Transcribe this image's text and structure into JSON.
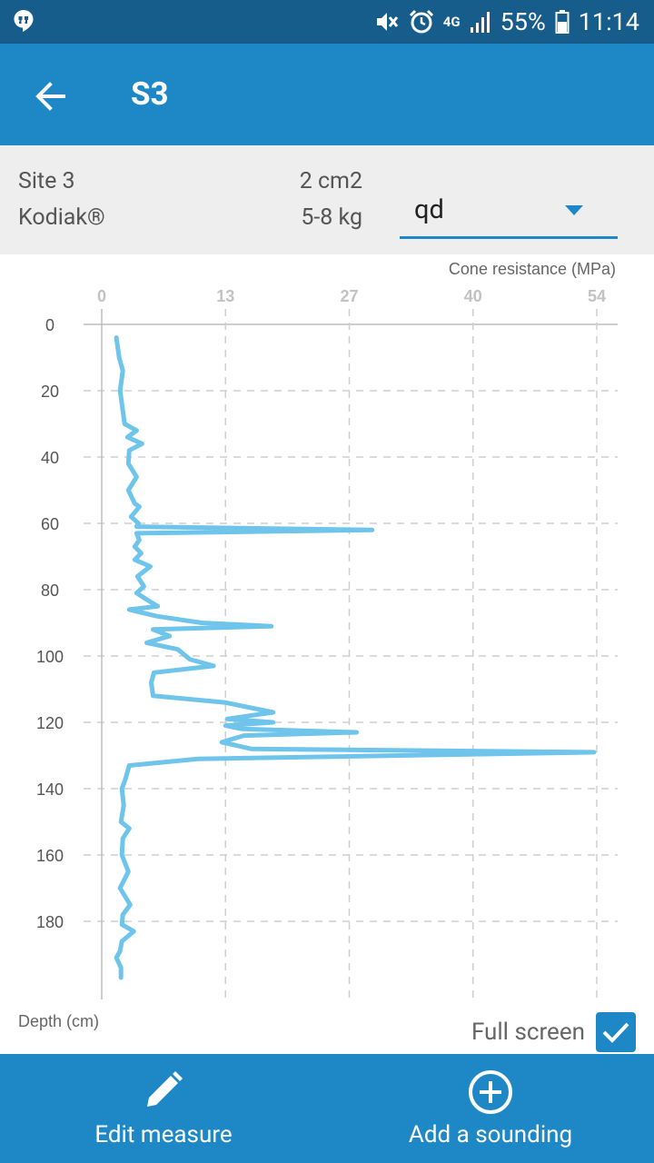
{
  "status_bar": {
    "battery": "55%",
    "time": "11:14",
    "network": "4G"
  },
  "app_bar": {
    "title": "S3"
  },
  "info": {
    "site": "Site 3",
    "device": "Kodiak®",
    "area": "2 cm2",
    "mass": "5-8 kg",
    "parameter": "qd"
  },
  "chart_data": {
    "type": "line",
    "xlabel": "Cone resistance (MPa)",
    "ylabel": "Depth (cm)",
    "xlim": [
      0,
      54
    ],
    "ylim": [
      0,
      200
    ],
    "x_ticks": [
      "0",
      "13",
      "27",
      "40",
      "54"
    ],
    "x_tick_values": [
      0,
      13.5,
      27,
      40.5,
      54
    ],
    "y_ticks": [
      "0",
      "20",
      "40",
      "60",
      "80",
      "100",
      "120",
      "140",
      "160",
      "180"
    ],
    "y_tick_values": [
      0,
      20,
      40,
      60,
      80,
      100,
      120,
      140,
      160,
      180
    ],
    "grid": true,
    "color": "#6ec4ea",
    "points": [
      [
        1.6,
        4
      ],
      [
        1.9,
        10
      ],
      [
        2.3,
        14
      ],
      [
        2.0,
        20
      ],
      [
        2.3,
        26
      ],
      [
        2.5,
        30
      ],
      [
        3.8,
        32
      ],
      [
        2.8,
        34
      ],
      [
        4.4,
        36
      ],
      [
        3.0,
        38
      ],
      [
        2.9,
        42
      ],
      [
        3.8,
        46
      ],
      [
        2.9,
        50
      ],
      [
        3.6,
        54
      ],
      [
        4.1,
        55
      ],
      [
        3.2,
        58
      ],
      [
        4.0,
        60
      ],
      [
        3.8,
        61
      ],
      [
        29.5,
        62
      ],
      [
        3.8,
        63
      ],
      [
        4.1,
        65
      ],
      [
        3.6,
        67
      ],
      [
        4.3,
        69
      ],
      [
        3.6,
        71
      ],
      [
        5.3,
        73
      ],
      [
        3.9,
        76
      ],
      [
        4.6,
        79
      ],
      [
        3.8,
        81
      ],
      [
        4.9,
        83
      ],
      [
        6.1,
        85
      ],
      [
        3.0,
        86
      ],
      [
        6.0,
        88
      ],
      [
        10.9,
        90
      ],
      [
        18.5,
        91
      ],
      [
        5.6,
        92
      ],
      [
        7.4,
        94
      ],
      [
        4.9,
        96
      ],
      [
        8.3,
        98
      ],
      [
        9.6,
        101
      ],
      [
        12.2,
        103
      ],
      [
        5.7,
        105
      ],
      [
        5.4,
        108
      ],
      [
        5.6,
        112
      ],
      [
        13.4,
        114
      ],
      [
        18.7,
        117
      ],
      [
        13.7,
        119
      ],
      [
        18.7,
        120
      ],
      [
        13.5,
        121
      ],
      [
        15.3,
        122
      ],
      [
        27.8,
        123
      ],
      [
        15.5,
        124
      ],
      [
        13.1,
        126
      ],
      [
        16.3,
        128
      ],
      [
        53.7,
        129
      ],
      [
        10.5,
        131
      ],
      [
        3.0,
        133
      ],
      [
        2.6,
        137
      ],
      [
        2.2,
        140
      ],
      [
        2.4,
        145
      ],
      [
        2.1,
        150
      ],
      [
        3.0,
        152
      ],
      [
        2.3,
        155
      ],
      [
        2.2,
        160
      ],
      [
        2.9,
        165
      ],
      [
        2.0,
        170
      ],
      [
        3.1,
        175
      ],
      [
        2.3,
        178
      ],
      [
        2.2,
        181
      ],
      [
        3.5,
        183
      ],
      [
        2.2,
        186
      ],
      [
        2.0,
        189
      ],
      [
        1.6,
        191
      ],
      [
        2.1,
        194
      ],
      [
        2.1,
        197
      ]
    ]
  },
  "controls": {
    "fullscreen_label": "Full screen",
    "fullscreen_checked": true
  },
  "bottom_bar": {
    "edit_label": "Edit measure",
    "add_label": "Add a sounding"
  },
  "icons": {
    "back": "arrow-left-icon",
    "edit": "pencil-icon",
    "add": "plus-circle-icon",
    "dropdown": "triangle-down-icon"
  },
  "colors": {
    "status_bar": "#175d8c",
    "primary": "#1e88c7",
    "panel": "#eeeeee",
    "series": "#6ec4ea"
  }
}
